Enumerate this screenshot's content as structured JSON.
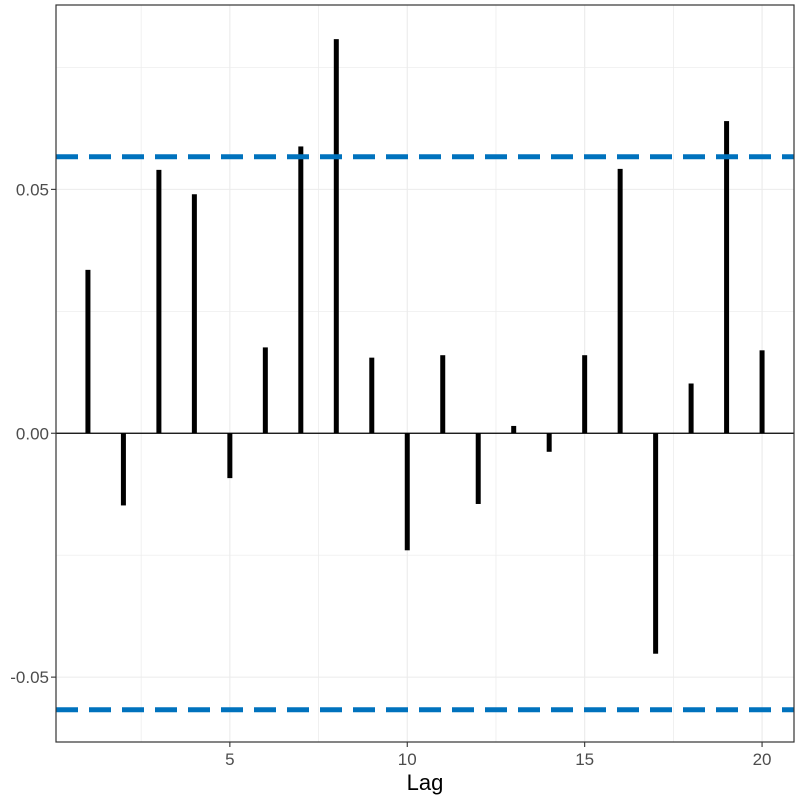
{
  "chart_data": {
    "type": "bar",
    "title": "",
    "xlabel": "Lag",
    "ylabel": "",
    "x": [
      1,
      2,
      3,
      4,
      5,
      6,
      7,
      8,
      9,
      10,
      11,
      12,
      13,
      14,
      15,
      16,
      17,
      18,
      19,
      20
    ],
    "values": [
      0.0335,
      -0.0148,
      0.054,
      0.049,
      -0.0092,
      0.0176,
      0.0588,
      0.0808,
      0.0155,
      -0.024,
      0.016,
      -0.0145,
      0.0015,
      -0.0038,
      0.016,
      0.0542,
      -0.0452,
      0.0102,
      0.064,
      0.017
    ],
    "xlim": [
      0.1,
      20.9
    ],
    "ylim": [
      -0.0633,
      0.0878
    ],
    "x_ticks": [
      5,
      10,
      15,
      20
    ],
    "x_tick_labels": [
      "5",
      "10",
      "15",
      "20"
    ],
    "y_ticks": [
      -0.05,
      0,
      0.05
    ],
    "y_tick_labels": [
      "-0.05",
      "0.00",
      "0.05"
    ],
    "confidence_bounds": [
      0.0567,
      -0.0567
    ],
    "grid": true,
    "colors": {
      "bars": "#000000",
      "bounds": "#0072BD",
      "grid": "#ebebeb",
      "panel_border": "#333333"
    }
  }
}
